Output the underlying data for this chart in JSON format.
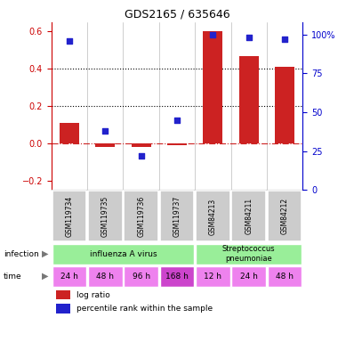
{
  "title": "GDS2165 / 635646",
  "samples": [
    "GSM119734",
    "GSM119735",
    "GSM119736",
    "GSM119737",
    "GSM84213",
    "GSM84211",
    "GSM84212"
  ],
  "log_ratio": [
    0.11,
    -0.02,
    -0.02,
    -0.01,
    0.6,
    0.47,
    0.41
  ],
  "percentile_rank_pct": [
    96,
    38,
    22,
    45,
    100,
    98,
    97
  ],
  "ylim_left": [
    -0.25,
    0.65
  ],
  "ylim_right": [
    0,
    108.0
  ],
  "yticks_left": [
    -0.2,
    0.0,
    0.2,
    0.4,
    0.6
  ],
  "yticks_right": [
    0,
    25,
    50,
    75,
    100
  ],
  "ytick_labels_right": [
    "0",
    "25",
    "50",
    "75",
    "100%"
  ],
  "hline_y": [
    0.2,
    0.4
  ],
  "zero_line_y": 0.0,
  "time_labels": [
    "24 h",
    "48 h",
    "96 h",
    "168 h",
    "12 h",
    "24 h",
    "48 h"
  ],
  "time_colors": [
    "#ee82ee",
    "#ee82ee",
    "#ee82ee",
    "#cc44cc",
    "#ee82ee",
    "#ee82ee",
    "#ee82ee"
  ],
  "bar_color": "#cc2222",
  "dot_color": "#2222cc",
  "dot_size": 18,
  "sample_box_color": "#cccccc",
  "ylabel_left_color": "#cc0000",
  "ylabel_right_color": "#0000cc",
  "influ_color": "#99ee99",
  "strep_color": "#99ee99"
}
